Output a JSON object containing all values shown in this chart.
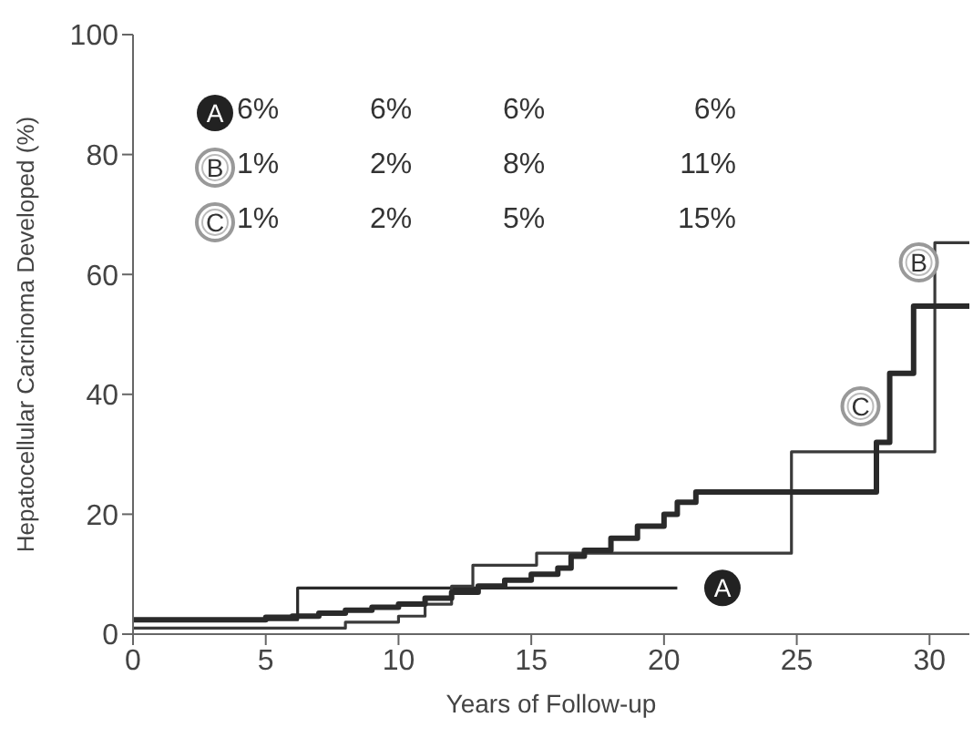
{
  "chart_data": {
    "type": "step",
    "xlabel": "Years of Follow-up",
    "ylabel": "Hepatocellular Carcinoma Developed (%)",
    "xlim": [
      0,
      31.5
    ],
    "xticks": [
      0,
      5,
      10,
      15,
      20,
      25,
      30
    ],
    "ylim": [
      0,
      100
    ],
    "yticks": [
      0,
      20,
      40,
      60,
      80,
      100
    ],
    "marker": "none",
    "line_style": "solid",
    "series": [
      {
        "color": "#2a2a2a",
        "x": [
          0,
          6.2,
          20.5
        ],
        "values": [
          2.4,
          7.7,
          7.7
        ]
      },
      {
        "color": "#3a3a3a",
        "x": [
          0,
          5,
          8,
          10,
          11,
          12,
          12.8,
          15.2,
          24.8,
          30.2,
          31.5
        ],
        "values": [
          1,
          1,
          2,
          3,
          5,
          8,
          11.5,
          13.5,
          30.4,
          65.3,
          65.3
        ]
      },
      {
        "color": "#2a2a2a",
        "x": [
          0,
          2.5,
          5,
          6,
          7,
          8,
          9,
          10,
          11,
          12,
          13,
          14,
          15,
          16,
          16.5,
          17,
          18,
          19,
          20,
          20.5,
          21.2,
          28,
          28.5,
          29.4,
          31.5
        ],
        "values": [
          2.4,
          2.4,
          2.8,
          3,
          3.5,
          4,
          4.5,
          5,
          6,
          7,
          8,
          9,
          10,
          11,
          13,
          14,
          16,
          18,
          20,
          22,
          23.7,
          32,
          43.5,
          54.7,
          54.7
        ]
      }
    ],
    "annotations": [
      "6%",
      "6%",
      "6%",
      "6%",
      "1%",
      "2%",
      "8%",
      "11%",
      "1%",
      "2%",
      "5%",
      "15%",
      {
        "text": "A",
        "x": 22.2,
        "y": 7.7
      },
      {
        "text": "B",
        "x": 29.6,
        "y": 62
      },
      {
        "text": "C",
        "x": 27.4,
        "y": 38
      }
    ]
  }
}
